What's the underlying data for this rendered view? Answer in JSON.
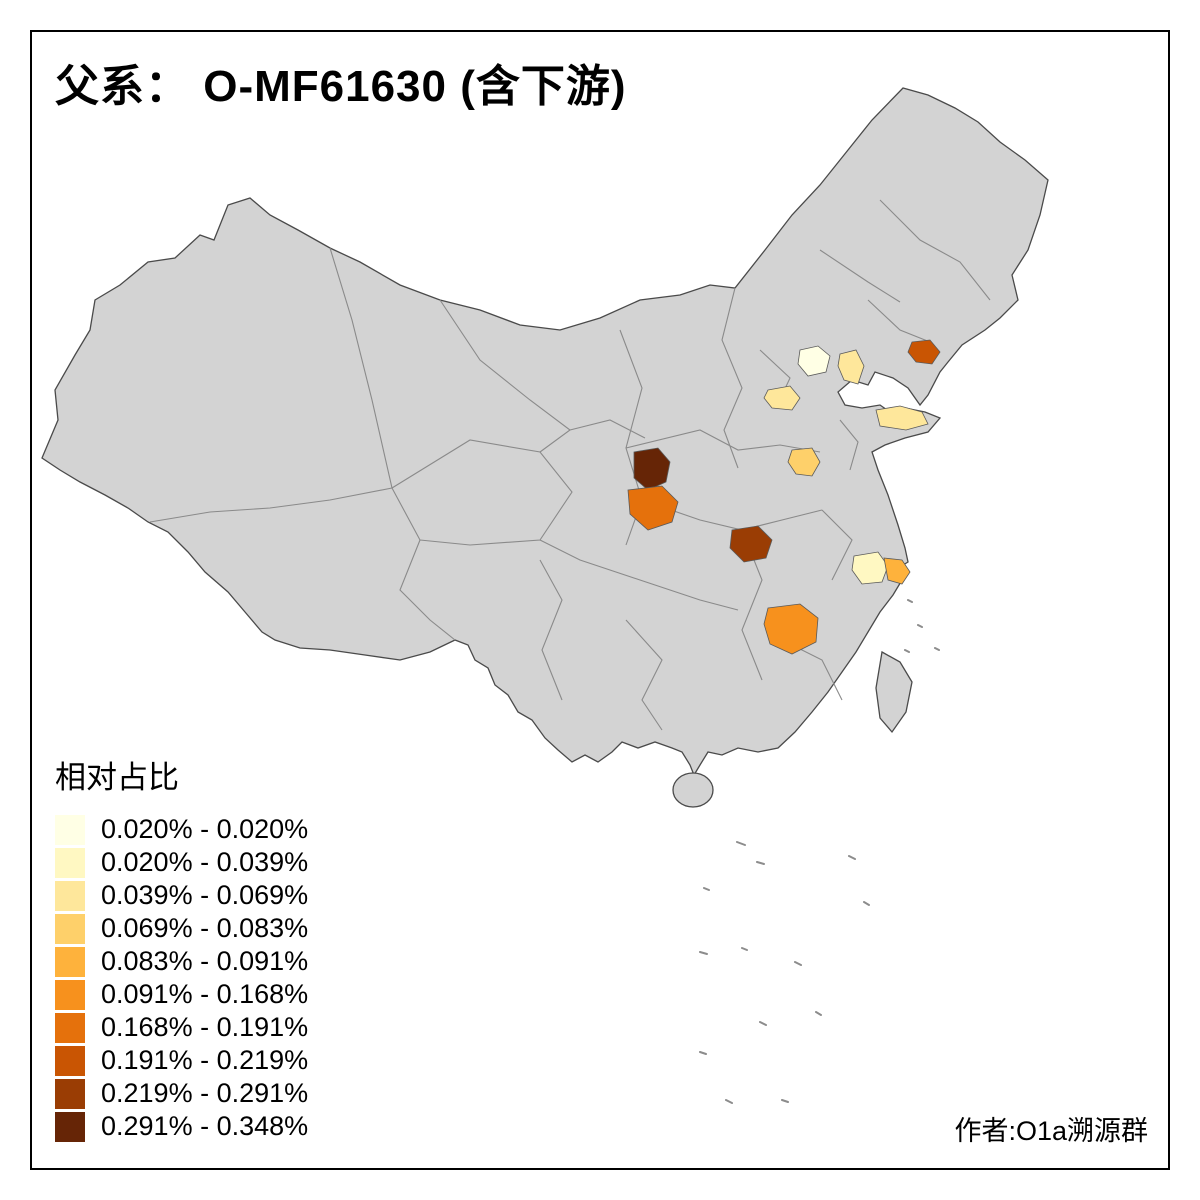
{
  "title": "父系： O-MF61630 (含下游)",
  "legend": {
    "title": "相对占比",
    "classes": [
      {
        "label": "0.020% - 0.020%",
        "color": "#FFFFE5"
      },
      {
        "label": "0.020% - 0.039%",
        "color": "#FFF8C2"
      },
      {
        "label": "0.039% - 0.069%",
        "color": "#FEE79B"
      },
      {
        "label": "0.069% - 0.083%",
        "color": "#FED06A"
      },
      {
        "label": "0.083% - 0.091%",
        "color": "#FEB23C"
      },
      {
        "label": "0.091% - 0.168%",
        "color": "#F7911D"
      },
      {
        "label": "0.168% - 0.191%",
        "color": "#E5710C"
      },
      {
        "label": "0.191% - 0.219%",
        "color": "#C95503"
      },
      {
        "label": "0.219% - 0.291%",
        "color": "#9A3D04"
      },
      {
        "label": "0.291% - 0.348%",
        "color": "#662506"
      }
    ]
  },
  "credit": "作者:O1a溯源群",
  "map": {
    "base_fill": "#D3D3D3",
    "regions": {
      "beijing": {
        "color": "#FFFFE5"
      },
      "tianjin": {
        "color": "#FEE79B"
      },
      "hebei_spot": {
        "color": "#FEE79B"
      },
      "liaoning_spot": {
        "color": "#C95503"
      },
      "shandong_east": {
        "color": "#FEE79B"
      },
      "henan_spot": {
        "color": "#FED06A"
      },
      "shaanxi_north": {
        "color": "#662506"
      },
      "shaanxi_south": {
        "color": "#E5710C"
      },
      "hubei_west": {
        "color": "#9A3D04"
      },
      "hunan": {
        "color": "#F7911D"
      },
      "zhejiang_light": {
        "color": "#FFF8C2"
      },
      "zhejiang_orange": {
        "color": "#FEB23C"
      }
    }
  }
}
